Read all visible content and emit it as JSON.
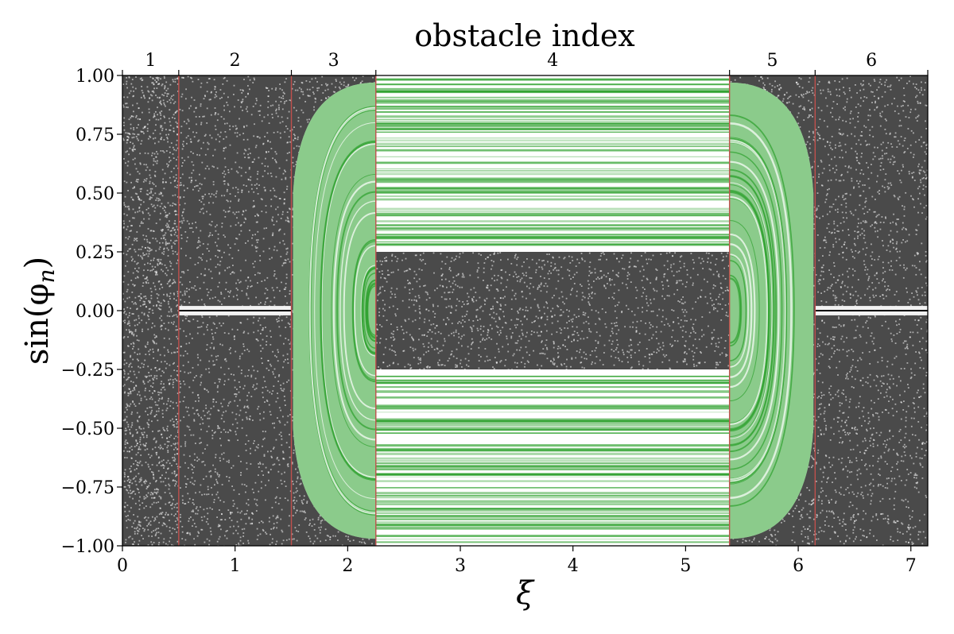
{
  "chart_data": {
    "type": "scatter",
    "title": "obstacle index",
    "xlabel": "ξ",
    "ylabel": "sin(φ",
    "ylabel_subscript": "n",
    "ylabel_close": ")",
    "xlim": [
      0,
      7.15
    ],
    "ylim": [
      -1.0,
      1.0
    ],
    "x_ticks": [
      0,
      1,
      2,
      3,
      4,
      5,
      6,
      7
    ],
    "x_tick_labels": [
      "0",
      "1",
      "2",
      "3",
      "4",
      "5",
      "6",
      "7"
    ],
    "y_ticks": [
      1.0,
      0.75,
      0.5,
      0.25,
      0.0,
      -0.25,
      -0.5,
      -0.75,
      -1.0
    ],
    "y_tick_labels": [
      "1.00",
      "0.75",
      "0.50",
      "0.25",
      "0.00",
      "−0.25",
      "−0.50",
      "−0.75",
      "−1.00"
    ],
    "obstacle_boundaries": [
      0.5,
      1.5,
      2.25,
      5.39,
      6.15,
      7.15
    ],
    "obstacle_labels": [
      {
        "label": "1",
        "x": 0.25
      },
      {
        "label": "2",
        "x": 1.0
      },
      {
        "label": "3",
        "x": 1.875
      },
      {
        "label": "4",
        "x": 3.82
      },
      {
        "label": "5",
        "x": 5.77
      },
      {
        "label": "6",
        "x": 6.65
      }
    ],
    "regions": [
      {
        "obstacle": "1",
        "x_range": [
          0,
          0.5
        ],
        "kind": "chaotic"
      },
      {
        "obstacle": "2",
        "x_range": [
          0.5,
          1.5
        ],
        "kind": "chaotic",
        "gap_near_y": 0.0
      },
      {
        "obstacle": "3",
        "x_range": [
          1.5,
          2.25
        ],
        "kind": "chaotic_with_regular_island"
      },
      {
        "obstacle": "4",
        "x_range": [
          2.25,
          5.39
        ],
        "kind": "regular_bands",
        "regular_y_abs_range": [
          0.26,
          1.0
        ],
        "chaotic_y_abs_below": 0.25
      },
      {
        "obstacle": "5",
        "x_range": [
          5.39,
          6.15
        ],
        "kind": "chaotic_with_regular_island"
      },
      {
        "obstacle": "6",
        "x_range": [
          6.15,
          7.15
        ],
        "kind": "chaotic",
        "gap_near_y": 0.0
      }
    ],
    "colors": {
      "chaotic": "#2a2a2a",
      "regular": "#2ca02c",
      "boundary": "#c0504d",
      "background": "#ffffff"
    },
    "grid": false
  }
}
